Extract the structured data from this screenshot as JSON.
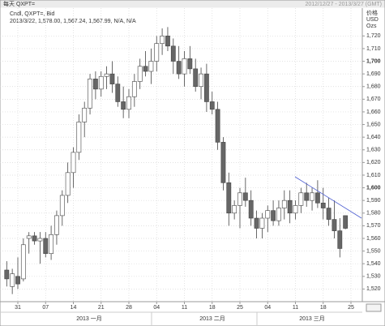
{
  "header": {
    "title": "每天 QXPT=",
    "range": "2012/12/27 - 2013/3/27 (GMT)"
  },
  "chart_data": {
    "type": "candlestick",
    "legend": "Cndl, QXPT=, Bid",
    "legend_values": "2013/3/22, 1,578.00, 1,567.24, 1,567.99, N/A, N/A",
    "y_axis_label": [
      "价格",
      "USD",
      "Ozs"
    ],
    "month_labels": [
      "2013 一月",
      "2013 二月",
      "2013 三月"
    ],
    "categories": [
      null,
      null,
      "31",
      null,
      null,
      null,
      null,
      "07",
      null,
      null,
      null,
      null,
      "14",
      null,
      null,
      null,
      null,
      "21",
      null,
      null,
      null,
      null,
      "28",
      null,
      null,
      null,
      null,
      "04",
      null,
      null,
      null,
      null,
      "11",
      null,
      null,
      null,
      null,
      "18",
      null,
      null,
      null,
      null,
      "25",
      null,
      null,
      null,
      null,
      "04",
      null,
      null,
      null,
      null,
      "11",
      null,
      null,
      null,
      null,
      "18",
      null,
      null,
      null,
      null,
      "25"
    ],
    "open": [
      1535,
      1522,
      1530,
      1528,
      1560,
      1562,
      1558,
      1560,
      1548,
      1563,
      1578,
      1594,
      1612,
      1628,
      1652,
      1663,
      1686,
      1678,
      1688,
      1690,
      1682,
      1668,
      1662,
      1672,
      1684,
      1696,
      1692,
      1700,
      1714,
      1720,
      1712,
      1700,
      1690,
      1702,
      1694,
      1680,
      1690,
      1668,
      1662,
      1636,
      1604,
      1580,
      1586,
      1596,
      1590,
      1576,
      1568,
      1576,
      1582,
      1574,
      1584,
      1590,
      1580,
      1586,
      1596,
      1590,
      1596,
      1588,
      1584,
      1575,
      1566,
      1578,
      null
    ],
    "high": [
      1542,
      1536,
      1545,
      1560,
      1565,
      1565,
      1565,
      1565,
      1570,
      1582,
      1598,
      1620,
      1632,
      1658,
      1668,
      1690,
      1692,
      1692,
      1696,
      1700,
      1688,
      1680,
      1678,
      1690,
      1702,
      1708,
      1710,
      1720,
      1726,
      1727,
      1718,
      1712,
      1708,
      1712,
      1702,
      1695,
      1698,
      1676,
      1668,
      1640,
      1612,
      1590,
      1600,
      1608,
      1598,
      1582,
      1580,
      1586,
      1590,
      1590,
      1598,
      1598,
      1590,
      1600,
      1604,
      1600,
      1606,
      1600,
      1592,
      1590,
      1576,
      1578,
      null
    ],
    "low": [
      1522,
      1516,
      1520,
      1526,
      1548,
      1555,
      1540,
      1545,
      1543,
      1555,
      1570,
      1588,
      1600,
      1622,
      1640,
      1658,
      1670,
      1672,
      1678,
      1675,
      1664,
      1655,
      1655,
      1664,
      1678,
      1688,
      1682,
      1692,
      1705,
      1708,
      1690,
      1686,
      1680,
      1690,
      1676,
      1670,
      1660,
      1658,
      1630,
      1598,
      1570,
      1575,
      1568,
      1585,
      1570,
      1560,
      1560,
      1565,
      1570,
      1570,
      1575,
      1572,
      1575,
      1580,
      1585,
      1582,
      1584,
      1575,
      1570,
      1560,
      1545,
      1567.24,
      null
    ],
    "close": [
      1528,
      1532,
      1524,
      1555,
      1562,
      1558,
      1560,
      1548,
      1563,
      1578,
      1594,
      1612,
      1628,
      1652,
      1663,
      1686,
      1678,
      1688,
      1690,
      1682,
      1668,
      1662,
      1672,
      1684,
      1696,
      1692,
      1700,
      1714,
      1720,
      1712,
      1700,
      1690,
      1702,
      1694,
      1680,
      1690,
      1668,
      1662,
      1636,
      1604,
      1580,
      1586,
      1596,
      1590,
      1576,
      1568,
      1576,
      1582,
      1574,
      1584,
      1590,
      1580,
      1586,
      1596,
      1590,
      1596,
      1588,
      1584,
      1575,
      1566,
      1552,
      1567.99,
      null
    ],
    "up_color": "#ffffff",
    "down_color": "#666666",
    "ylim": [
      1510,
      1742
    ],
    "yticks": [
      {
        "value": 1520,
        "label": "1,520"
      },
      {
        "value": 1530,
        "label": "1,530"
      },
      {
        "value": 1540,
        "label": "1,540"
      },
      {
        "value": 1550,
        "label": "1,550"
      },
      {
        "value": 1560,
        "label": "1,560"
      },
      {
        "value": 1570,
        "label": "1,570"
      },
      {
        "value": 1580,
        "label": "1,580"
      },
      {
        "value": 1590,
        "label": "1,590"
      },
      {
        "value": 1600,
        "label": "1,600"
      },
      {
        "value": 1610,
        "label": "1,610"
      },
      {
        "value": 1620,
        "label": "1,620"
      },
      {
        "value": 1630,
        "label": "1,630"
      },
      {
        "value": 1640,
        "label": "1,640"
      },
      {
        "value": 1650,
        "label": "1,650"
      },
      {
        "value": 1660,
        "label": "1,660"
      },
      {
        "value": 1670,
        "label": "1,670"
      },
      {
        "value": 1680,
        "label": "1,680"
      },
      {
        "value": 1690,
        "label": "1,690"
      },
      {
        "value": 1700,
        "label": "1,700"
      },
      {
        "value": 1710,
        "label": "1,710"
      },
      {
        "value": 1720,
        "label": "1,720"
      }
    ],
    "grid": true
  }
}
